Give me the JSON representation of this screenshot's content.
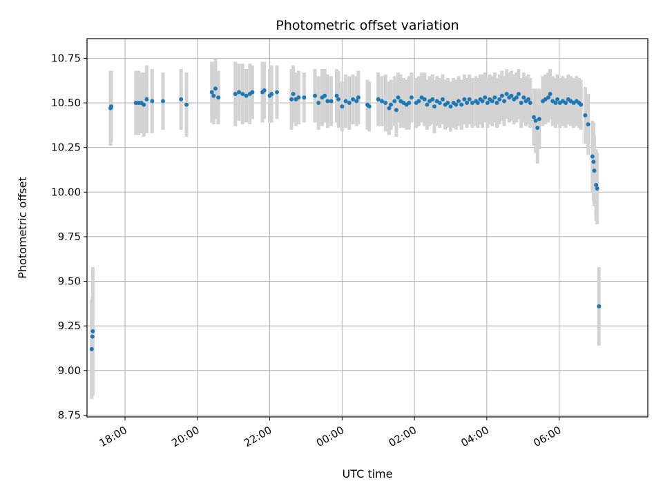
{
  "chart_data": {
    "type": "scatter",
    "title": "Photometric offset variation",
    "xlabel": "UTC time",
    "ylabel": "Photometric offset",
    "x_unit": "hours (UTC)",
    "xlim": [
      16.95,
      32.45
    ],
    "ylim": [
      8.74,
      10.86
    ],
    "x_ticks": [
      {
        "v": 18,
        "label": "18:00"
      },
      {
        "v": 20,
        "label": "20:00"
      },
      {
        "v": 22,
        "label": "22:00"
      },
      {
        "v": 24,
        "label": "00:00"
      },
      {
        "v": 26,
        "label": "02:00"
      },
      {
        "v": 28,
        "label": "04:00"
      },
      {
        "v": 30,
        "label": "06:00"
      }
    ],
    "y_ticks": [
      {
        "v": 8.75,
        "label": "8.75"
      },
      {
        "v": 9.0,
        "label": "9.00"
      },
      {
        "v": 9.25,
        "label": "9.25"
      },
      {
        "v": 9.5,
        "label": "9.50"
      },
      {
        "v": 9.75,
        "label": "9.75"
      },
      {
        "v": 10.0,
        "label": "10.00"
      },
      {
        "v": 10.25,
        "label": "10.25"
      },
      {
        "v": 10.5,
        "label": "10.50"
      },
      {
        "v": 10.75,
        "label": "10.75"
      }
    ],
    "grid": true,
    "marker_color": "#1f77b4",
    "errorbar_color": "#d3d3d3",
    "points": [
      [
        17.08,
        9.12,
        0.28
      ],
      [
        17.1,
        9.19,
        0.22
      ],
      [
        17.11,
        9.22,
        0.36
      ],
      [
        17.6,
        10.47,
        0.21
      ],
      [
        17.62,
        10.48,
        0.2
      ],
      [
        18.3,
        10.5,
        0.18
      ],
      [
        18.38,
        10.5,
        0.18
      ],
      [
        18.45,
        10.5,
        0.17
      ],
      [
        18.52,
        10.49,
        0.18
      ],
      [
        18.6,
        10.52,
        0.19
      ],
      [
        18.75,
        10.51,
        0.18
      ],
      [
        19.05,
        10.51,
        0.16
      ],
      [
        19.55,
        10.52,
        0.17
      ],
      [
        19.7,
        10.49,
        0.18
      ],
      [
        20.4,
        10.56,
        0.17
      ],
      [
        20.45,
        10.54,
        0.16
      ],
      [
        20.5,
        10.58,
        0.17
      ],
      [
        20.58,
        10.53,
        0.15
      ],
      [
        21.05,
        10.55,
        0.18
      ],
      [
        21.15,
        10.56,
        0.16
      ],
      [
        21.25,
        10.55,
        0.17
      ],
      [
        21.35,
        10.54,
        0.15
      ],
      [
        21.45,
        10.55,
        0.17
      ],
      [
        21.52,
        10.56,
        0.15
      ],
      [
        21.8,
        10.56,
        0.17
      ],
      [
        21.85,
        10.57,
        0.16
      ],
      [
        22.0,
        10.54,
        0.15
      ],
      [
        22.05,
        10.55,
        0.16
      ],
      [
        22.2,
        10.56,
        0.15
      ],
      [
        22.6,
        10.52,
        0.17
      ],
      [
        22.65,
        10.55,
        0.16
      ],
      [
        22.72,
        10.52,
        0.15
      ],
      [
        22.8,
        10.53,
        0.15
      ],
      [
        22.95,
        10.53,
        0.14
      ],
      [
        23.25,
        10.54,
        0.15
      ],
      [
        23.35,
        10.5,
        0.15
      ],
      [
        23.45,
        10.53,
        0.16
      ],
      [
        23.52,
        10.54,
        0.15
      ],
      [
        23.6,
        10.51,
        0.15
      ],
      [
        23.7,
        10.51,
        0.14
      ],
      [
        23.85,
        10.54,
        0.15
      ],
      [
        23.9,
        10.52,
        0.16
      ],
      [
        24.0,
        10.48,
        0.14
      ],
      [
        24.1,
        10.51,
        0.15
      ],
      [
        24.2,
        10.5,
        0.15
      ],
      [
        24.3,
        10.52,
        0.14
      ],
      [
        24.4,
        10.51,
        0.14
      ],
      [
        24.45,
        10.53,
        0.15
      ],
      [
        24.7,
        10.49,
        0.14
      ],
      [
        24.75,
        10.48,
        0.14
      ],
      [
        25.0,
        10.52,
        0.15
      ],
      [
        25.1,
        10.51,
        0.14
      ],
      [
        25.2,
        10.5,
        0.16
      ],
      [
        25.3,
        10.47,
        0.15
      ],
      [
        25.35,
        10.49,
        0.14
      ],
      [
        25.45,
        10.51,
        0.14
      ],
      [
        25.5,
        10.46,
        0.15
      ],
      [
        25.55,
        10.53,
        0.14
      ],
      [
        25.62,
        10.51,
        0.15
      ],
      [
        25.7,
        10.5,
        0.14
      ],
      [
        25.78,
        10.49,
        0.14
      ],
      [
        25.85,
        10.5,
        0.15
      ],
      [
        25.92,
        10.53,
        0.14
      ],
      [
        26.05,
        10.5,
        0.14
      ],
      [
        26.12,
        10.51,
        0.14
      ],
      [
        26.2,
        10.53,
        0.14
      ],
      [
        26.28,
        10.52,
        0.15
      ],
      [
        26.35,
        10.49,
        0.14
      ],
      [
        26.42,
        10.51,
        0.14
      ],
      [
        26.5,
        10.52,
        0.14
      ],
      [
        26.55,
        10.48,
        0.15
      ],
      [
        26.62,
        10.51,
        0.14
      ],
      [
        26.7,
        10.5,
        0.14
      ],
      [
        26.78,
        10.52,
        0.14
      ],
      [
        26.85,
        10.49,
        0.14
      ],
      [
        26.92,
        10.5,
        0.14
      ],
      [
        27.0,
        10.48,
        0.14
      ],
      [
        27.08,
        10.5,
        0.14
      ],
      [
        27.15,
        10.49,
        0.14
      ],
      [
        27.22,
        10.51,
        0.14
      ],
      [
        27.3,
        10.49,
        0.14
      ],
      [
        27.38,
        10.52,
        0.14
      ],
      [
        27.45,
        10.5,
        0.14
      ],
      [
        27.52,
        10.52,
        0.14
      ],
      [
        27.6,
        10.5,
        0.14
      ],
      [
        27.7,
        10.51,
        0.14
      ],
      [
        27.75,
        10.5,
        0.14
      ],
      [
        27.82,
        10.52,
        0.14
      ],
      [
        27.88,
        10.51,
        0.15
      ],
      [
        27.95,
        10.53,
        0.14
      ],
      [
        28.02,
        10.5,
        0.14
      ],
      [
        28.08,
        10.52,
        0.14
      ],
      [
        28.15,
        10.51,
        0.14
      ],
      [
        28.22,
        10.53,
        0.14
      ],
      [
        28.28,
        10.5,
        0.14
      ],
      [
        28.35,
        10.52,
        0.14
      ],
      [
        28.42,
        10.54,
        0.14
      ],
      [
        28.48,
        10.51,
        0.14
      ],
      [
        28.55,
        10.55,
        0.14
      ],
      [
        28.62,
        10.53,
        0.14
      ],
      [
        28.68,
        10.54,
        0.14
      ],
      [
        28.75,
        10.52,
        0.14
      ],
      [
        28.82,
        10.53,
        0.14
      ],
      [
        28.88,
        10.55,
        0.14
      ],
      [
        28.95,
        10.5,
        0.14
      ],
      [
        29.02,
        10.53,
        0.14
      ],
      [
        29.08,
        10.51,
        0.14
      ],
      [
        29.15,
        10.52,
        0.14
      ],
      [
        29.2,
        10.5,
        0.14
      ],
      [
        29.3,
        10.42,
        0.16
      ],
      [
        29.35,
        10.4,
        0.18
      ],
      [
        29.4,
        10.36,
        0.2
      ],
      [
        29.45,
        10.41,
        0.17
      ],
      [
        29.55,
        10.51,
        0.14
      ],
      [
        29.62,
        10.52,
        0.14
      ],
      [
        29.7,
        10.53,
        0.14
      ],
      [
        29.75,
        10.55,
        0.14
      ],
      [
        29.82,
        10.51,
        0.14
      ],
      [
        29.9,
        10.5,
        0.14
      ],
      [
        29.95,
        10.52,
        0.14
      ],
      [
        30.02,
        10.5,
        0.14
      ],
      [
        30.1,
        10.51,
        0.14
      ],
      [
        30.18,
        10.5,
        0.14
      ],
      [
        30.25,
        10.52,
        0.14
      ],
      [
        30.32,
        10.51,
        0.14
      ],
      [
        30.4,
        10.5,
        0.14
      ],
      [
        30.48,
        10.51,
        0.14
      ],
      [
        30.55,
        10.5,
        0.14
      ],
      [
        30.6,
        10.49,
        0.14
      ],
      [
        30.72,
        10.43,
        0.16
      ],
      [
        30.8,
        10.38,
        0.17
      ],
      [
        30.92,
        10.2,
        0.2
      ],
      [
        30.95,
        10.17,
        0.22
      ],
      [
        30.97,
        10.12,
        0.2
      ],
      [
        31.02,
        10.04,
        0.2
      ],
      [
        31.05,
        10.02,
        0.2
      ],
      [
        31.1,
        9.36,
        0.22
      ]
    ]
  }
}
